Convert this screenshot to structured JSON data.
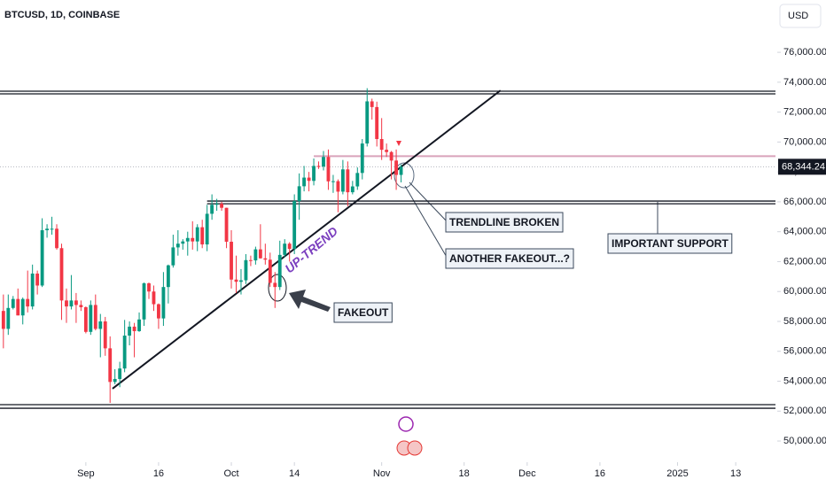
{
  "chart_data": {
    "type": "candlestick",
    "title": "BTCUSD, 1D, COINBASE",
    "currency": "USD",
    "up_color": "#089981",
    "down_color": "#f23645",
    "xlim": [
      -17.7,
      142.2
    ],
    "xticks": [
      {
        "value": 0,
        "label": "Sep"
      },
      {
        "value": 15,
        "label": "16"
      },
      {
        "value": 30,
        "label": "Oct"
      },
      {
        "value": 43,
        "label": "14"
      },
      {
        "value": 61,
        "label": "Nov"
      },
      {
        "value": 78,
        "label": "18"
      },
      {
        "value": 91,
        "label": "Dec"
      },
      {
        "value": 106,
        "label": "16"
      },
      {
        "value": 122,
        "label": "2025"
      },
      {
        "value": 134,
        "label": "13"
      }
    ],
    "ylim": [
      48700,
      79500
    ],
    "yticks": [
      {
        "value": 50000,
        "label": "50,000.00"
      },
      {
        "value": 52000,
        "label": "52,000.00"
      },
      {
        "value": 54000,
        "label": "54,000.00"
      },
      {
        "value": 56000,
        "label": "56,000.00"
      },
      {
        "value": 58000,
        "label": "58,000.00"
      },
      {
        "value": 60000,
        "label": "60,000.00"
      },
      {
        "value": 62000,
        "label": "62,000.00"
      },
      {
        "value": 64000,
        "label": "64,000.00"
      },
      {
        "value": 66000,
        "label": "66,000.00"
      },
      {
        "value": 68000,
        "label": "68,000.00"
      },
      {
        "value": 70000,
        "label": "70,000.00"
      },
      {
        "value": 72000,
        "label": "72,000.00"
      },
      {
        "value": 74000,
        "label": "74,000.00"
      },
      {
        "value": 76000,
        "label": "76,000.00"
      }
    ],
    "last_price": {
      "value": 68344.24,
      "label": "68,344.24"
    },
    "x": [
      -17,
      -16,
      -15,
      -14,
      -13,
      -12,
      -11,
      -10,
      -9,
      -8,
      -7,
      -6,
      -5,
      -4,
      -3,
      -2,
      -1,
      0,
      1,
      2,
      3,
      4,
      5,
      6,
      7,
      8,
      9,
      10,
      11,
      12,
      13,
      14,
      15,
      16,
      17,
      18,
      19,
      20,
      21,
      22,
      23,
      24,
      25,
      26,
      27,
      28,
      29,
      30,
      31,
      32,
      33,
      34,
      35,
      36,
      37,
      38,
      39,
      40,
      41,
      42,
      43,
      44,
      45,
      46,
      47,
      48,
      49,
      50,
      51,
      52,
      53,
      54,
      55,
      56,
      57,
      58,
      59,
      60,
      61,
      62,
      63,
      64,
      65
    ],
    "ohlc": [
      [
        58700,
        59800,
        56200,
        57500
      ],
      [
        57500,
        59800,
        57100,
        58900
      ],
      [
        58900,
        59700,
        58800,
        59500
      ],
      [
        59500,
        60200,
        58400,
        58400
      ],
      [
        58400,
        59600,
        57800,
        59500
      ],
      [
        59500,
        61400,
        58600,
        59000
      ],
      [
        59000,
        61800,
        58800,
        61200
      ],
      [
        61200,
        61400,
        59800,
        60400
      ],
      [
        60400,
        64900,
        60300,
        64100
      ],
      [
        64100,
        64500,
        63600,
        64200
      ],
      [
        64200,
        65000,
        63800,
        64200
      ],
      [
        64200,
        64500,
        62800,
        62900
      ],
      [
        62900,
        63200,
        58100,
        59400
      ],
      [
        59400,
        60200,
        57900,
        59000
      ],
      [
        59000,
        61100,
        58800,
        59400
      ],
      [
        59400,
        59900,
        57900,
        59100
      ],
      [
        59100,
        59400,
        58700,
        58950
      ],
      [
        58950,
        59000,
        57200,
        57300
      ],
      [
        57300,
        59400,
        57100,
        59100
      ],
      [
        59100,
        59800,
        57400,
        57500
      ],
      [
        57500,
        58500,
        55600,
        58000
      ],
      [
        58000,
        58300,
        55700,
        56200
      ],
      [
        56200,
        57000,
        52550,
        53950
      ],
      [
        53950,
        54800,
        53800,
        54150
      ],
      [
        54150,
        55300,
        53600,
        54850
      ],
      [
        54850,
        58100,
        54600,
        57050
      ],
      [
        57050,
        58000,
        56400,
        57650
      ],
      [
        57650,
        57900,
        55600,
        57350
      ],
      [
        57350,
        58600,
        57300,
        58130
      ],
      [
        58130,
        60600,
        57700,
        60550
      ],
      [
        60550,
        60600,
        59500,
        60000
      ],
      [
        60000,
        60400,
        58700,
        59150
      ],
      [
        59150,
        59200,
        57500,
        58200
      ],
      [
        58200,
        61300,
        57700,
        60300
      ],
      [
        60300,
        61800,
        59200,
        61750
      ],
      [
        61750,
        63800,
        61600,
        62950
      ],
      [
        62950,
        64100,
        62400,
        63200
      ],
      [
        63200,
        63500,
        62800,
        63350
      ],
      [
        63350,
        64000,
        62400,
        63580
      ],
      [
        63580,
        64700,
        62800,
        63350
      ],
      [
        63350,
        64500,
        62700,
        64300
      ],
      [
        64300,
        64800,
        62900,
        63150
      ],
      [
        63150,
        65800,
        62700,
        65200
      ],
      [
        65200,
        66500,
        64800,
        65800
      ],
      [
        65800,
        66200,
        65400,
        65870
      ],
      [
        65870,
        66000,
        65400,
        65600
      ],
      [
        65600,
        65600,
        62900,
        63330
      ],
      [
        63330,
        64100,
        60200,
        60800
      ],
      [
        60800,
        62400,
        59900,
        60650
      ],
      [
        60650,
        61500,
        59800,
        60750
      ],
      [
        60750,
        62500,
        60500,
        62100
      ],
      [
        62100,
        62400,
        61700,
        62080
      ],
      [
        62080,
        63000,
        61800,
        62820
      ],
      [
        62820,
        64500,
        62200,
        62220
      ],
      [
        62220,
        63200,
        61800,
        62130
      ],
      [
        62130,
        62600,
        60300,
        60580
      ],
      [
        60580,
        61300,
        58900,
        60300
      ],
      [
        60300,
        63400,
        60100,
        62450
      ],
      [
        62450,
        63500,
        62300,
        63200
      ],
      [
        63200,
        63300,
        62000,
        62850
      ],
      [
        62850,
        66500,
        62500,
        66050
      ],
      [
        66050,
        67900,
        64800,
        67040
      ],
      [
        67040,
        68400,
        66700,
        67620
      ],
      [
        67620,
        68000,
        66700,
        67400
      ],
      [
        67400,
        68900,
        67100,
        68400
      ],
      [
        68400,
        68700,
        68200,
        68360
      ],
      [
        68360,
        69400,
        68100,
        69000
      ],
      [
        69000,
        69500,
        66800,
        67370
      ],
      [
        67370,
        67800,
        66600,
        67380
      ],
      [
        67380,
        67500,
        65300,
        66680
      ],
      [
        66680,
        68800,
        66500,
        68170
      ],
      [
        68170,
        68700,
        65700,
        66640
      ],
      [
        66640,
        67400,
        66500,
        67030
      ],
      [
        67030,
        68300,
        66800,
        67930
      ],
      [
        67930,
        70200,
        67500,
        69900
      ],
      [
        69900,
        73600,
        69700,
        72720
      ],
      [
        72720,
        72900,
        71500,
        72340
      ],
      [
        72340,
        72700,
        69700,
        70200
      ],
      [
        70200,
        71600,
        68800,
        69480
      ],
      [
        69480,
        69900,
        69000,
        69330
      ],
      [
        69330,
        69400,
        67500,
        68760
      ],
      [
        68760,
        69500,
        66800,
        67800
      ],
      [
        67800,
        68500,
        67300,
        68344.24
      ]
    ],
    "levels": [
      {
        "value": 73400,
        "from": -17.7,
        "color": "#131722"
      },
      {
        "value": 73220,
        "from": -17.7,
        "color": "#131722"
      },
      {
        "value": 66050,
        "from": 25,
        "color": "#131722"
      },
      {
        "value": 65870,
        "from": 25,
        "color": "#131722"
      },
      {
        "value": 52430,
        "from": -17.7,
        "color": "#131722"
      },
      {
        "value": 52190,
        "from": -17.7,
        "color": "#131722"
      },
      {
        "value": 69050,
        "from": 47,
        "color": "#d9a3bb"
      }
    ],
    "trendline": {
      "x": [
        5.5,
        85.5
      ],
      "y": [
        53500,
        73450
      ]
    },
    "annotations": [
      "UP-TREND",
      "FAKEOUT",
      "TRENDLINE BROKEN",
      "ANOTHER FAKEOUT...?",
      "IMPORTANT SUPPORT"
    ]
  }
}
